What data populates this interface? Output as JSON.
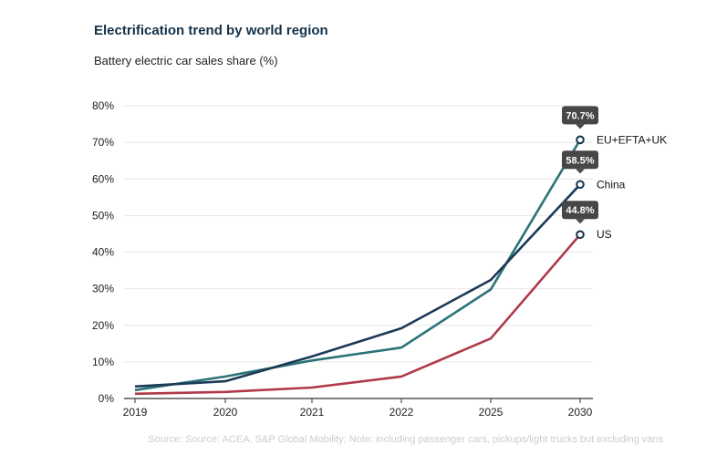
{
  "title": "Electrification trend by world region",
  "subtitle": "Battery electric car sales share (%)",
  "source": "Source:  Source: ACEA, S&P Global Mobility; Note: including passenger cars, pickups/light trucks but excluding vans",
  "chart_data": {
    "type": "line",
    "x": [
      "2019",
      "2020",
      "2021",
      "2022",
      "2025",
      "2030"
    ],
    "ylim": [
      0,
      80
    ],
    "yticks": [
      "0%",
      "10%",
      "20%",
      "30%",
      "40%",
      "50%",
      "60%",
      "70%",
      "80%"
    ],
    "grid": true,
    "series": [
      {
        "name": "EU+EFTA+UK",
        "color": "#2a7478",
        "values": [
          2.3,
          6.0,
          10.4,
          13.9,
          29.8,
          70.7
        ],
        "end_value_label": "70.7%"
      },
      {
        "name": "China",
        "color": "#1c3a57",
        "values": [
          3.3,
          4.7,
          11.5,
          19.2,
          32.4,
          58.5
        ],
        "end_value_label": "58.5%"
      },
      {
        "name": "US",
        "color": "#b0394a",
        "values": [
          1.3,
          1.8,
          3.0,
          6.0,
          16.4,
          44.8
        ],
        "end_value_label": "44.8%"
      }
    ]
  }
}
